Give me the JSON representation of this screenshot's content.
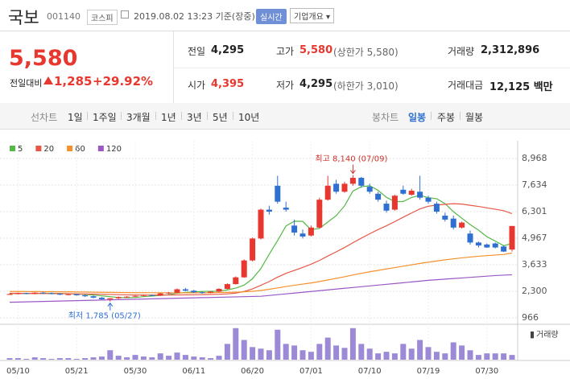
{
  "header": {
    "name": "국보",
    "code": "001140",
    "market": "코스피",
    "time": "2019.08.02 13:23 기준(장중)",
    "realtime": "실시간",
    "company": "기업개요"
  },
  "quote": {
    "price": "5,580",
    "change_label": "전일대비",
    "change": "1,285",
    "change_pct": "+29.92%",
    "rows": [
      [
        {
          "label": "전일",
          "value": "4,295"
        },
        {
          "label": "고가",
          "value": "5,580",
          "note": "(상한가 5,580)"
        },
        {
          "label": "거래량",
          "value": "2,312,896"
        }
      ],
      [
        {
          "label": "시가",
          "value": "4,395"
        },
        {
          "label": "저가",
          "value": "4,295",
          "note": "(하한가 3,010)"
        },
        {
          "label": "거래대금",
          "value": "12,125 백만"
        }
      ]
    ]
  },
  "tabs": {
    "line": "선차트",
    "line_periods": [
      "1일",
      "1주일",
      "3개월",
      "1년",
      "3년",
      "5년",
      "10년"
    ],
    "candle": "봉차트",
    "candle_periods": [
      "일봉",
      "주봉",
      "월봉"
    ]
  },
  "chart_data": {
    "type": "candlestick",
    "categories": [
      null,
      "05/10",
      null,
      null,
      null,
      null,
      null,
      null,
      "05/21",
      null,
      null,
      null,
      null,
      null,
      null,
      "05/30",
      null,
      null,
      null,
      null,
      null,
      null,
      "06/11",
      null,
      null,
      null,
      null,
      null,
      null,
      "06/20",
      null,
      null,
      null,
      null,
      null,
      null,
      "07/01",
      null,
      null,
      null,
      null,
      null,
      null,
      "07/10",
      null,
      null,
      null,
      null,
      null,
      null,
      "07/19",
      null,
      null,
      null,
      null,
      null,
      null,
      "07/30",
      null,
      null,
      null
    ],
    "open": [
      2150,
      2160,
      2210,
      2170,
      2230,
      2200,
      2170,
      2130,
      2150,
      2100,
      2050,
      1980,
      1900,
      1950,
      2010,
      2030,
      2070,
      2110,
      2080,
      2190,
      2230,
      2400,
      2330,
      2250,
      2230,
      2280,
      2420,
      2660,
      3000,
      3850,
      4950,
      6400,
      7600,
      6500,
      5600,
      5200,
      5100,
      5500,
      6900,
      7700,
      7300,
      7700,
      8000,
      7550,
      7200,
      6700,
      6400,
      7400,
      7150,
      7300,
      7000,
      6700,
      6100,
      5950,
      5500,
      5200,
      4750,
      4650,
      4700,
      4550,
      4395
    ],
    "high": [
      2200,
      2230,
      2230,
      2250,
      2260,
      2240,
      2200,
      2180,
      2170,
      2130,
      2090,
      2010,
      1960,
      2040,
      2060,
      2090,
      2130,
      2140,
      2210,
      2260,
      2440,
      2470,
      2370,
      2290,
      2300,
      2450,
      2700,
      3050,
      3900,
      5000,
      6450,
      6600,
      8100,
      6800,
      5900,
      5400,
      5600,
      7000,
      8100,
      7900,
      7800,
      8140,
      8050,
      7700,
      7300,
      6850,
      7150,
      7600,
      7450,
      8100,
      7100,
      6800,
      6250,
      6100,
      5800,
      5350,
      4800,
      4700,
      4750,
      4600,
      5580
    ],
    "low": [
      2120,
      2140,
      2150,
      2150,
      2180,
      2150,
      2110,
      2100,
      2080,
      2020,
      1950,
      1880,
      1785,
      1920,
      1970,
      2000,
      2040,
      2060,
      2070,
      2150,
      2210,
      2300,
      2220,
      2180,
      2200,
      2260,
      2400,
      2640,
      2980,
      3800,
      4900,
      6150,
      6700,
      6300,
      5100,
      4950,
      5050,
      5450,
      6850,
      7200,
      7250,
      7600,
      7500,
      7200,
      6800,
      6250,
      6350,
      7150,
      7100,
      6900,
      6700,
      6200,
      5800,
      5400,
      5450,
      4650,
      4500,
      4480,
      4450,
      4280,
      4295
    ],
    "close": [
      2160,
      2210,
      2170,
      2230,
      2200,
      2170,
      2130,
      2150,
      2100,
      2050,
      1980,
      1900,
      1950,
      2010,
      2030,
      2070,
      2110,
      2080,
      2190,
      2230,
      2400,
      2330,
      2250,
      2230,
      2280,
      2420,
      2660,
      3000,
      3850,
      4950,
      6400,
      6300,
      6800,
      6400,
      5250,
      5050,
      5500,
      6900,
      7600,
      7300,
      7700,
      8000,
      7600,
      7300,
      6900,
      6350,
      7100,
      7200,
      7350,
      7000,
      6800,
      6300,
      5900,
      5500,
      5750,
      4750,
      4600,
      4500,
      4500,
      4295,
      5580
    ],
    "up_color": "#e8372f",
    "down_color": "#2f6fd1",
    "series": [
      {
        "name": "5",
        "color": "#55b947",
        "values": [
          2180,
          2185,
          2190,
          2195,
          2195,
          2200,
          2190,
          2180,
          2160,
          2140,
          2110,
          2070,
          2030,
          1990,
          1980,
          1990,
          2030,
          2060,
          2090,
          2130,
          2200,
          2240,
          2270,
          2290,
          2300,
          2300,
          2370,
          2460,
          2610,
          2930,
          3440,
          4160,
          4850,
          5580,
          5820,
          5810,
          5390,
          5460,
          5780,
          6100,
          6590,
          7340,
          7550,
          7600,
          7370,
          7020,
          6800,
          6810,
          7010,
          7120,
          7000,
          6950,
          6700,
          6300,
          5970,
          5650,
          5370,
          5040,
          4820,
          4590,
          4700
        ]
      },
      {
        "name": "20",
        "color": "#e85746",
        "values": [
          2200,
          2200,
          2195,
          2195,
          2190,
          2185,
          2180,
          2175,
          2170,
          2165,
          2160,
          2150,
          2140,
          2130,
          2120,
          2115,
          2110,
          2110,
          2110,
          2110,
          2115,
          2120,
          2125,
          2130,
          2140,
          2150,
          2170,
          2210,
          2290,
          2420,
          2600,
          2790,
          3010,
          3200,
          3350,
          3500,
          3660,
          3850,
          4070,
          4280,
          4500,
          4740,
          4970,
          5190,
          5400,
          5590,
          5800,
          6020,
          6230,
          6440,
          6570,
          6630,
          6670,
          6700,
          6680,
          6620,
          6560,
          6490,
          6420,
          6350,
          6200
        ]
      },
      {
        "name": "60",
        "color": "#f5902c",
        "values": [
          2290,
          2290,
          2285,
          2285,
          2280,
          2280,
          2275,
          2270,
          2265,
          2260,
          2255,
          2250,
          2245,
          2240,
          2235,
          2230,
          2228,
          2226,
          2224,
          2222,
          2220,
          2222,
          2224,
          2226,
          2230,
          2236,
          2244,
          2256,
          2272,
          2300,
          2340,
          2400,
          2470,
          2540,
          2600,
          2660,
          2720,
          2790,
          2870,
          2950,
          3030,
          3120,
          3200,
          3280,
          3350,
          3420,
          3490,
          3560,
          3630,
          3700,
          3760,
          3820,
          3880,
          3930,
          3980,
          4020,
          4060,
          4090,
          4120,
          4150,
          4220
        ]
      },
      {
        "name": "120",
        "color": "#9a58c5",
        "values": [
          1750,
          1760,
          1770,
          1780,
          1790,
          1800,
          1810,
          1820,
          1830,
          1840,
          1850,
          1860,
          1870,
          1880,
          1890,
          1900,
          1910,
          1920,
          1930,
          1940,
          1950,
          1960,
          1970,
          1980,
          1990,
          2000,
          2010,
          2020,
          2030,
          2040,
          2050,
          2090,
          2130,
          2170,
          2210,
          2250,
          2290,
          2330,
          2370,
          2410,
          2450,
          2490,
          2530,
          2570,
          2610,
          2650,
          2690,
          2730,
          2770,
          2810,
          2850,
          2880,
          2910,
          2940,
          2970,
          3000,
          3030,
          3060,
          3090,
          3110,
          3130
        ]
      }
    ],
    "volume": [
      770000,
      770000,
      385000,
      1155000,
      770000,
      385000,
      770000,
      770000,
      385000,
      770000,
      1155000,
      1540000,
      4620000,
      1925000,
      1155000,
      2310000,
      1540000,
      1155000,
      3080000,
      1925000,
      3465000,
      2310000,
      1540000,
      1155000,
      770000,
      1925000,
      7700000,
      15400000,
      9625000,
      6160000,
      5390000,
      4620000,
      14630000,
      7700000,
      6930000,
      4620000,
      3850000,
      7700000,
      10780000,
      6930000,
      5775000,
      15400000,
      7700000,
      5390000,
      3080000,
      3850000,
      3080000,
      7700000,
      5390000,
      9625000,
      6160000,
      3850000,
      3080000,
      8470000,
      6930000,
      4620000,
      2310000,
      3080000,
      3080000,
      3080000,
      2312896
    ],
    "volume_color": "#9d8ad6",
    "volume_ylim": [
      0,
      16500000
    ],
    "volume_label": "거래량",
    "ylim": [
      966,
      8968
    ],
    "yticks": [
      {
        "value": 8968,
        "label": "8,968"
      },
      {
        "value": 7634,
        "label": "7,634"
      },
      {
        "value": 6301,
        "label": "6,301"
      },
      {
        "value": 4967,
        "label": "4,967"
      },
      {
        "value": 3633,
        "label": "3,633"
      },
      {
        "value": 2300,
        "label": "2,300"
      },
      966
    ],
    "grid": true,
    "annotations": {
      "high": "최고 8,140 (07/09)",
      "low": "최저 1,785 (05/27)"
    }
  }
}
